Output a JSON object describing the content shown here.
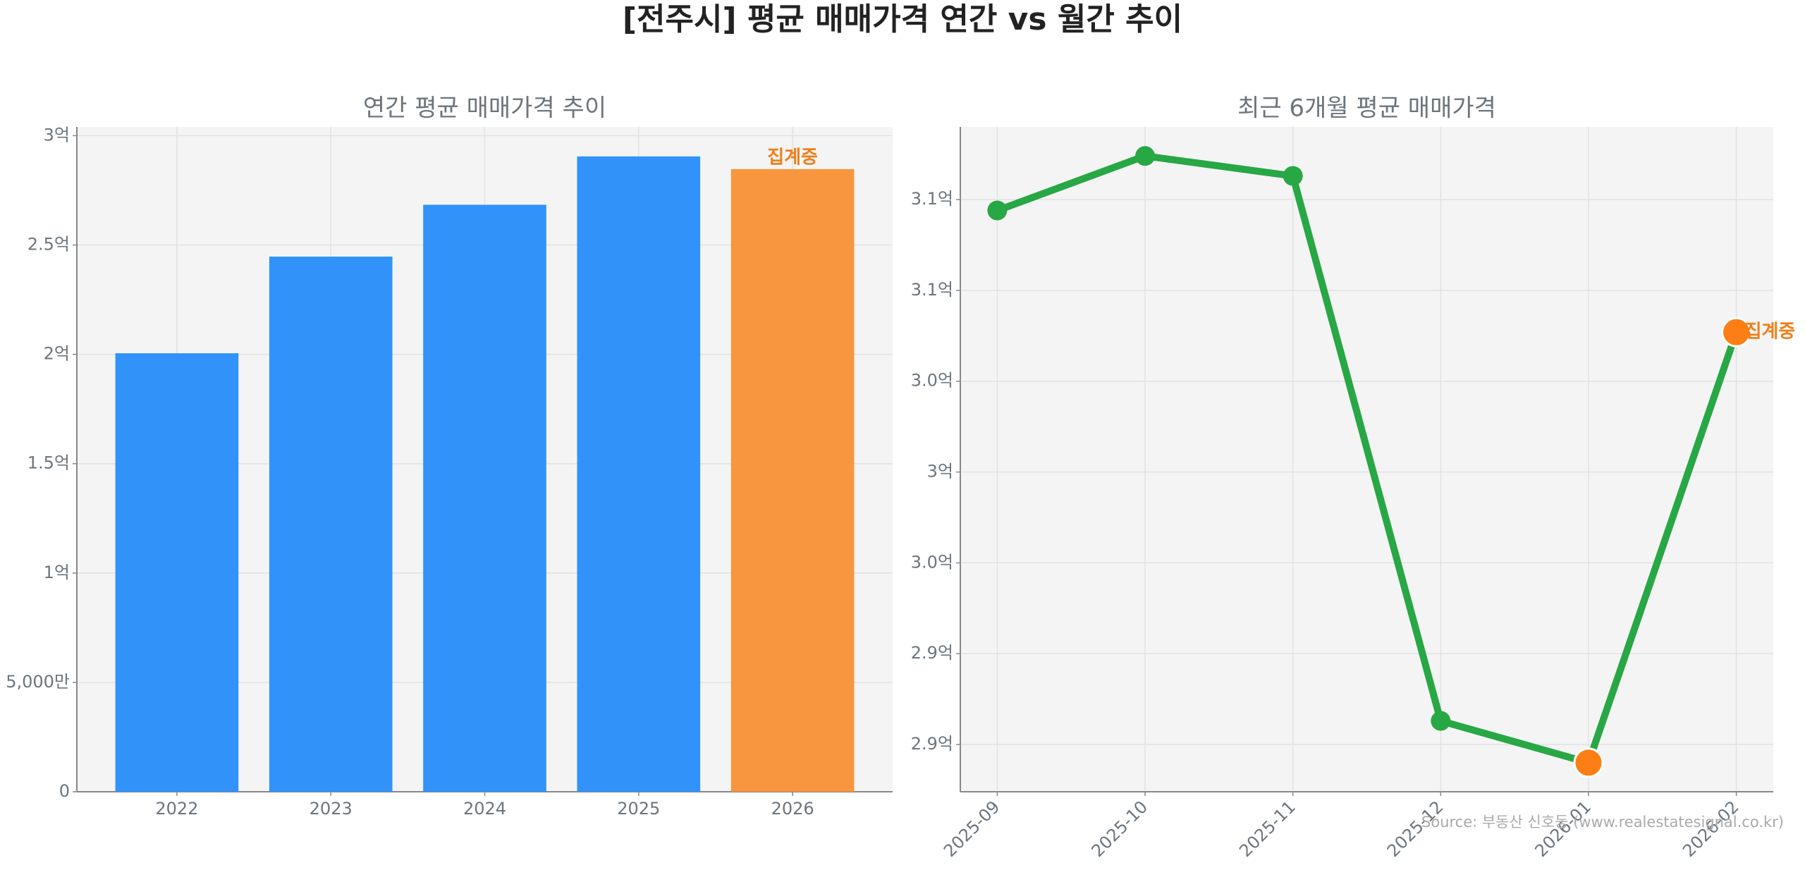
{
  "title": "[전주시] 평균 매매가격 연간 vs 월간 추이",
  "source": "Source: 부동산 신호등 (www.realestatesignal.co.kr)",
  "chart_data": [
    {
      "type": "bar",
      "title": "연간 평균 매매가격 추이",
      "categories": [
        "2022",
        "2023",
        "2024",
        "2025",
        "2026"
      ],
      "values": [
        200500000,
        244700000,
        268400000,
        290500000,
        284700000
      ],
      "colors": [
        "#3193fa",
        "#3193fa",
        "#3193fa",
        "#3193fa",
        "#f7963e"
      ],
      "annotation": "집계중",
      "annotation_color": "#f07f1a",
      "ylim": [
        0,
        304000000
      ],
      "yticks": [
        {
          "value": 0,
          "label": "0"
        },
        {
          "value": 50000000,
          "label": "5,000만"
        },
        {
          "value": 100000000,
          "label": "1억"
        },
        {
          "value": 150000000,
          "label": "1.5억"
        },
        {
          "value": 200000000,
          "label": "2억"
        },
        {
          "value": 250000000,
          "label": "2.5억"
        },
        {
          "value": 300000000,
          "label": "3억"
        }
      ],
      "grid": true
    },
    {
      "type": "line",
      "title": "최근 6개월 평균 매매가격",
      "categories": [
        "2025-09",
        "2025-10",
        "2025-11",
        "2025-12",
        "2026-01",
        "2026-02"
      ],
      "values": [
        314400000,
        317400000,
        316300000,
        286300000,
        284000000,
        307700000
      ],
      "color": "#28a745",
      "point_colors": [
        "#28a745",
        "#28a745",
        "#28a745",
        "#28a745",
        "#fd7e14",
        "#fd7e14"
      ],
      "annotation": "집계중",
      "annotation_color": "#f07f1a",
      "ylim": [
        282400000,
        319000000
      ],
      "yticks": [
        {
          "value": 285000000,
          "label": "2.9억"
        },
        {
          "value": 290000000,
          "label": "2.9억"
        },
        {
          "value": 295000000,
          "label": "3.0억"
        },
        {
          "value": 300000000,
          "label": "3억"
        },
        {
          "value": 305000000,
          "label": "3.0억"
        },
        {
          "value": 310000000,
          "label": "3.1억"
        },
        {
          "value": 315000000,
          "label": "3.1억"
        }
      ],
      "grid": true
    }
  ]
}
